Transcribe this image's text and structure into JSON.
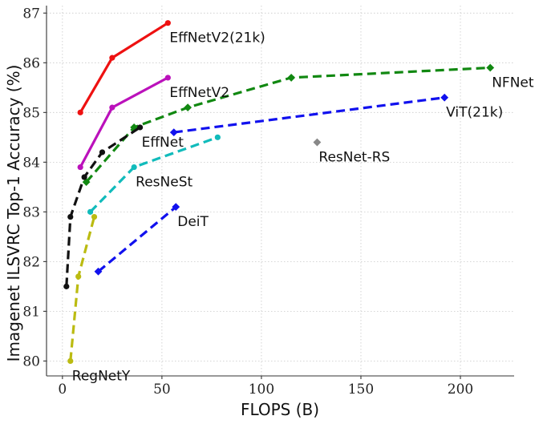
{
  "chart_data": {
    "type": "line",
    "xlabel": "FLOPS (B)",
    "ylabel": "Imagenet ILSVRC Top-1 Accuracy (%)",
    "xlim": [
      -8,
      227
    ],
    "ylim": [
      79.7,
      87.15
    ],
    "xticks": [
      0,
      50,
      100,
      150,
      200
    ],
    "yticks": [
      80,
      81,
      82,
      83,
      84,
      85,
      86,
      87
    ],
    "grid": true,
    "series": [
      {
        "name": "EffNetV2(21k)",
        "color": "#ee1111",
        "dashed": false,
        "marker": "circle",
        "x": [
          9,
          25,
          53
        ],
        "y": [
          85.0,
          86.1,
          86.8
        ],
        "label_at": [
          53,
          86.8
        ],
        "label_anchor": "below-right"
      },
      {
        "name": "EffNetV2",
        "color": "#bb11bb",
        "dashed": false,
        "marker": "circle",
        "x": [
          9,
          25,
          53
        ],
        "y": [
          83.9,
          85.1,
          85.7
        ],
        "label_at": [
          53,
          85.7
        ],
        "label_anchor": "below-right"
      },
      {
        "name": "NFNet",
        "color": "#118811",
        "dashed": true,
        "marker": "diamond",
        "x": [
          12,
          36,
          63,
          115,
          215
        ],
        "y": [
          83.6,
          84.7,
          85.1,
          85.7,
          85.9
        ],
        "label_at": [
          215,
          85.9
        ],
        "label_anchor": "below-right"
      },
      {
        "name": "ViT(21k)",
        "color": "#1111ee",
        "dashed": true,
        "marker": "diamond",
        "x": [
          56,
          192
        ],
        "y": [
          84.6,
          85.3
        ],
        "label_at": [
          192,
          85.3
        ],
        "label_anchor": "below-right"
      },
      {
        "name": "EffNet",
        "color": "#111111",
        "dashed": true,
        "marker": "circle",
        "x": [
          2,
          4,
          11,
          20,
          39
        ],
        "y": [
          81.5,
          82.9,
          83.7,
          84.2,
          84.7
        ],
        "label_at": [
          39,
          84.7
        ],
        "label_anchor": "below-right"
      },
      {
        "name": "ResNeSt",
        "color": "#11bbbb",
        "dashed": true,
        "marker": "circle",
        "x": [
          14,
          36,
          78
        ],
        "y": [
          83.0,
          83.9,
          84.5
        ],
        "label_at": [
          36,
          83.9
        ],
        "label_anchor": "below-right"
      },
      {
        "name": "DeiT",
        "color": "#1111ee",
        "dashed": true,
        "marker": "diamond",
        "x": [
          18,
          57
        ],
        "y": [
          81.8,
          83.1
        ],
        "label_at": [
          57,
          83.1
        ],
        "label_anchor": "below-right"
      },
      {
        "name": "RegNetY",
        "color": "#bbbb11",
        "dashed": true,
        "marker": "circle",
        "x": [
          4,
          8,
          16
        ],
        "y": [
          80.0,
          81.7,
          82.9
        ],
        "label_at": [
          4,
          80.0
        ],
        "label_anchor": "below-right"
      },
      {
        "name": "ResNet-RS",
        "color": "#888888",
        "dashed": false,
        "marker": "diamond",
        "x": [
          128
        ],
        "y": [
          84.4
        ],
        "label_at": [
          128,
          84.4
        ],
        "label_anchor": "below-right"
      }
    ]
  }
}
